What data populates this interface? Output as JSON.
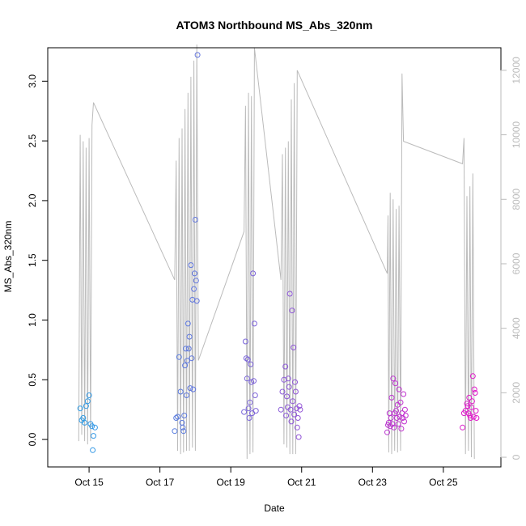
{
  "chart_data": {
    "type": "scatter",
    "title": "ATOM3 Northbound MS_Abs_320nm",
    "xlabel": "Date",
    "ylabel": "MS_Abs_320nm",
    "x_unit": "date",
    "xlim": [
      "2017-10-13T20:00",
      "2017-10-26T15:00"
    ],
    "ylim": [
      -0.23,
      3.28
    ],
    "y_ticks": [
      "0.0",
      "0.5",
      "1.0",
      "1.5",
      "2.0",
      "2.5",
      "3.0"
    ],
    "x_ticks": [
      {
        "date": "2017-10-15",
        "label": "Oct 15"
      },
      {
        "date": "2017-10-17",
        "label": "Oct 17"
      },
      {
        "date": "2017-10-19",
        "label": "Oct 19"
      },
      {
        "date": "2017-10-21",
        "label": "Oct 21"
      },
      {
        "date": "2017-10-23",
        "label": "Oct 23"
      },
      {
        "date": "2017-10-25",
        "label": "Oct 25"
      }
    ],
    "secondary_axis": {
      "side": "right",
      "color": "#bbbbbb",
      "ylim": [
        -300,
        12700
      ],
      "ticks": [
        "0",
        "2000",
        "4000",
        "6000",
        "8000",
        "10000",
        "12000"
      ]
    },
    "point_color_start": "#1ea7e8",
    "point_color_end": "#ee10c8",
    "series": [
      {
        "axis": "left",
        "style": "points",
        "points": [
          [
            "2017-10-14T18:00",
            0.26
          ],
          [
            "2017-10-14T19:00",
            0.16
          ],
          [
            "2017-10-14T20:00",
            0.18
          ],
          [
            "2017-10-14T21:00",
            0.14
          ],
          [
            "2017-10-14T22:00",
            0.28
          ],
          [
            "2017-10-14T23:00",
            0.32
          ],
          [
            "2017-10-15T00:00",
            0.37
          ],
          [
            "2017-10-15T01:00",
            0.13
          ],
          [
            "2017-10-15T02:00",
            0.11
          ],
          [
            "2017-10-15T03:00",
            0.03
          ],
          [
            "2017-10-15T02:30",
            -0.09
          ],
          [
            "2017-10-15T04:00",
            0.1
          ],
          [
            "2017-10-17T10:00",
            0.07
          ],
          [
            "2017-10-17T11:00",
            0.18
          ],
          [
            "2017-10-17T12:00",
            0.19
          ],
          [
            "2017-10-17T13:00",
            0.69
          ],
          [
            "2017-10-17T14:00",
            0.4
          ],
          [
            "2017-10-17T15:00",
            0.14
          ],
          [
            "2017-10-17T15:30",
            0.1
          ],
          [
            "2017-10-17T16:00",
            0.07
          ],
          [
            "2017-10-17T16:30",
            0.2
          ],
          [
            "2017-10-17T17:00",
            0.62
          ],
          [
            "2017-10-17T17:30",
            0.76
          ],
          [
            "2017-10-17T18:00",
            0.37
          ],
          [
            "2017-10-17T18:30",
            0.66
          ],
          [
            "2017-10-17T19:00",
            0.97
          ],
          [
            "2017-10-17T19:30",
            0.76
          ],
          [
            "2017-10-17T20:00",
            0.86
          ],
          [
            "2017-10-17T20:30",
            0.43
          ],
          [
            "2017-10-17T21:00",
            1.46
          ],
          [
            "2017-10-17T21:30",
            0.68
          ],
          [
            "2017-10-17T22:00",
            1.17
          ],
          [
            "2017-10-17T22:30",
            0.42
          ],
          [
            "2017-10-17T23:00",
            1.26
          ],
          [
            "2017-10-17T23:30",
            1.39
          ],
          [
            "2017-10-18T00:00",
            1.84
          ],
          [
            "2017-10-18T00:30",
            1.33
          ],
          [
            "2017-10-18T01:00",
            1.16
          ],
          [
            "2017-10-18T01:30",
            3.22
          ],
          [
            "2017-10-19T09:00",
            0.23
          ],
          [
            "2017-10-19T10:00",
            0.82
          ],
          [
            "2017-10-19T10:30",
            0.68
          ],
          [
            "2017-10-19T11:00",
            0.51
          ],
          [
            "2017-10-19T11:30",
            0.67
          ],
          [
            "2017-10-19T12:00",
            0.26
          ],
          [
            "2017-10-19T12:30",
            0.18
          ],
          [
            "2017-10-19T13:00",
            0.31
          ],
          [
            "2017-10-19T13:30",
            0.63
          ],
          [
            "2017-10-19T14:00",
            0.48
          ],
          [
            "2017-10-19T14:30",
            0.22
          ],
          [
            "2017-10-19T15:00",
            1.39
          ],
          [
            "2017-10-19T15:30",
            0.49
          ],
          [
            "2017-10-19T16:00",
            0.97
          ],
          [
            "2017-10-19T16:30",
            0.37
          ],
          [
            "2017-10-19T17:00",
            0.24
          ],
          [
            "2017-10-20T10:00",
            0.25
          ],
          [
            "2017-10-20T11:00",
            0.4
          ],
          [
            "2017-10-20T12:00",
            0.5
          ],
          [
            "2017-10-20T13:00",
            0.61
          ],
          [
            "2017-10-20T13:30",
            0.2
          ],
          [
            "2017-10-20T14:00",
            0.36
          ],
          [
            "2017-10-20T14:30",
            0.27
          ],
          [
            "2017-10-20T15:00",
            0.51
          ],
          [
            "2017-10-20T15:30",
            0.44
          ],
          [
            "2017-10-20T16:00",
            1.22
          ],
          [
            "2017-10-20T16:30",
            0.25
          ],
          [
            "2017-10-20T17:00",
            0.15
          ],
          [
            "2017-10-20T17:30",
            1.08
          ],
          [
            "2017-10-20T18:00",
            0.32
          ],
          [
            "2017-10-20T18:30",
            0.77
          ],
          [
            "2017-10-20T19:00",
            0.21
          ],
          [
            "2017-10-20T19:30",
            0.48
          ],
          [
            "2017-10-20T20:00",
            0.4
          ],
          [
            "2017-10-20T20:30",
            0.26
          ],
          [
            "2017-10-20T21:00",
            0.1
          ],
          [
            "2017-10-20T21:30",
            0.18
          ],
          [
            "2017-10-20T22:00",
            0.02
          ],
          [
            "2017-10-20T22:30",
            0.28
          ],
          [
            "2017-10-20T23:00",
            0.25
          ],
          [
            "2017-10-23T10:00",
            0.06
          ],
          [
            "2017-10-23T10:30",
            0.12
          ],
          [
            "2017-10-23T11:00",
            0.14
          ],
          [
            "2017-10-23T11:30",
            0.22
          ],
          [
            "2017-10-23T12:00",
            0.11
          ],
          [
            "2017-10-23T12:30",
            0.18
          ],
          [
            "2017-10-23T13:00",
            0.35
          ],
          [
            "2017-10-23T13:30",
            0.13
          ],
          [
            "2017-10-23T14:00",
            0.51
          ],
          [
            "2017-10-23T14:30",
            0.1
          ],
          [
            "2017-10-23T15:00",
            0.22
          ],
          [
            "2017-10-23T15:30",
            0.47
          ],
          [
            "2017-10-23T16:00",
            0.24
          ],
          [
            "2017-10-23T16:30",
            0.18
          ],
          [
            "2017-10-23T17:00",
            0.29
          ],
          [
            "2017-10-23T17:30",
            0.13
          ],
          [
            "2017-10-23T18:00",
            0.42
          ],
          [
            "2017-10-23T18:30",
            0.19
          ],
          [
            "2017-10-23T19:00",
            0.31
          ],
          [
            "2017-10-23T19:30",
            0.09
          ],
          [
            "2017-10-23T20:00",
            0.22
          ],
          [
            "2017-10-23T20:30",
            0.18
          ],
          [
            "2017-10-23T21:00",
            0.38
          ],
          [
            "2017-10-23T21:30",
            0.15
          ],
          [
            "2017-10-23T22:00",
            0.25
          ],
          [
            "2017-10-23T22:30",
            0.2
          ],
          [
            "2017-10-25T13:00",
            0.1
          ],
          [
            "2017-10-25T14:00",
            0.22
          ],
          [
            "2017-10-25T15:00",
            0.24
          ],
          [
            "2017-10-25T16:00",
            0.3
          ],
          [
            "2017-10-25T16:30",
            0.28
          ],
          [
            "2017-10-25T17:00",
            0.22
          ],
          [
            "2017-10-25T17:30",
            0.35
          ],
          [
            "2017-10-25T18:00",
            0.2
          ],
          [
            "2017-10-25T18:30",
            0.18
          ],
          [
            "2017-10-25T19:00",
            0.27
          ],
          [
            "2017-10-25T19:30",
            0.32
          ],
          [
            "2017-10-25T20:00",
            0.53
          ],
          [
            "2017-10-25T20:30",
            0.19
          ],
          [
            "2017-10-25T21:00",
            0.42
          ],
          [
            "2017-10-25T21:30",
            0.39
          ],
          [
            "2017-10-25T22:00",
            0.24
          ],
          [
            "2017-10-25T22:30",
            0.18
          ]
        ]
      },
      {
        "axis": "right",
        "style": "line",
        "color": "#bbbbbb",
        "points": [
          [
            "2017-10-14T17:00",
            500
          ],
          [
            "2017-10-14T18:00",
            10000
          ],
          [
            "2017-10-14T19:00",
            700
          ],
          [
            "2017-10-14T20:00",
            9800
          ],
          [
            "2017-10-14T21:00",
            500
          ],
          [
            "2017-10-14T22:00",
            9600
          ],
          [
            "2017-10-14T23:00",
            400
          ],
          [
            "2017-10-15T00:00",
            9900
          ],
          [
            "2017-10-15T01:00",
            500
          ],
          [
            "2017-10-15T02:00",
            10300
          ],
          [
            "2017-10-15T03:00",
            11000
          ],
          [
            "2017-10-17T10:00",
            5500
          ],
          [
            "2017-10-17T11:00",
            9200
          ],
          [
            "2017-10-17T12:00",
            200
          ],
          [
            "2017-10-17T13:00",
            9900
          ],
          [
            "2017-10-17T14:00",
            100
          ],
          [
            "2017-10-17T15:00",
            10200
          ],
          [
            "2017-10-17T16:00",
            150
          ],
          [
            "2017-10-17T17:00",
            10800
          ],
          [
            "2017-10-17T18:00",
            200
          ],
          [
            "2017-10-17T19:00",
            11300
          ],
          [
            "2017-10-17T20:00",
            200
          ],
          [
            "2017-10-17T21:00",
            11800
          ],
          [
            "2017-10-17T22:00",
            300
          ],
          [
            "2017-10-17T23:00",
            12300
          ],
          [
            "2017-10-18T00:00",
            200
          ],
          [
            "2017-10-18T01:00",
            12800
          ],
          [
            "2017-10-18T02:00",
            3000
          ],
          [
            "2017-10-19T09:00",
            7000
          ],
          [
            "2017-10-19T10:00",
            10900
          ],
          [
            "2017-10-19T11:00",
            -50
          ],
          [
            "2017-10-19T12:00",
            11300
          ],
          [
            "2017-10-19T13:00",
            100
          ],
          [
            "2017-10-19T14:00",
            11200
          ],
          [
            "2017-10-19T15:00",
            150
          ],
          [
            "2017-10-19T16:00",
            12700
          ],
          [
            "2017-10-20T10:00",
            5500
          ],
          [
            "2017-10-20T11:00",
            9400
          ],
          [
            "2017-10-20T12:00",
            400
          ],
          [
            "2017-10-20T13:00",
            9600
          ],
          [
            "2017-10-20T14:00",
            300
          ],
          [
            "2017-10-20T15:00",
            9800
          ],
          [
            "2017-10-20T16:00",
            100
          ],
          [
            "2017-10-20T17:00",
            11100
          ],
          [
            "2017-10-20T18:00",
            100
          ],
          [
            "2017-10-20T19:00",
            11600
          ],
          [
            "2017-10-20T20:00",
            100
          ],
          [
            "2017-10-20T21:00",
            12000
          ],
          [
            "2017-10-23T10:00",
            5700
          ],
          [
            "2017-10-23T10:30",
            7500
          ],
          [
            "2017-10-23T11:00",
            150
          ],
          [
            "2017-10-23T12:00",
            8200
          ],
          [
            "2017-10-23T13:00",
            100
          ],
          [
            "2017-10-23T14:00",
            8000
          ],
          [
            "2017-10-23T15:00",
            200
          ],
          [
            "2017-10-23T16:00",
            7700
          ],
          [
            "2017-10-23T17:00",
            150
          ],
          [
            "2017-10-23T18:00",
            7800
          ],
          [
            "2017-10-23T19:00",
            200
          ],
          [
            "2017-10-23T20:00",
            11900
          ],
          [
            "2017-10-23T21:00",
            9800
          ],
          [
            "2017-10-25T13:00",
            9100
          ],
          [
            "2017-10-25T14:00",
            9900
          ],
          [
            "2017-10-25T15:00",
            100
          ],
          [
            "2017-10-25T16:00",
            8100
          ],
          [
            "2017-10-25T17:00",
            200
          ],
          [
            "2017-10-25T18:00",
            8400
          ],
          [
            "2017-10-25T19:00",
            0
          ],
          [
            "2017-10-25T20:00",
            8800
          ],
          [
            "2017-10-25T21:00",
            -50
          ]
        ]
      }
    ]
  }
}
